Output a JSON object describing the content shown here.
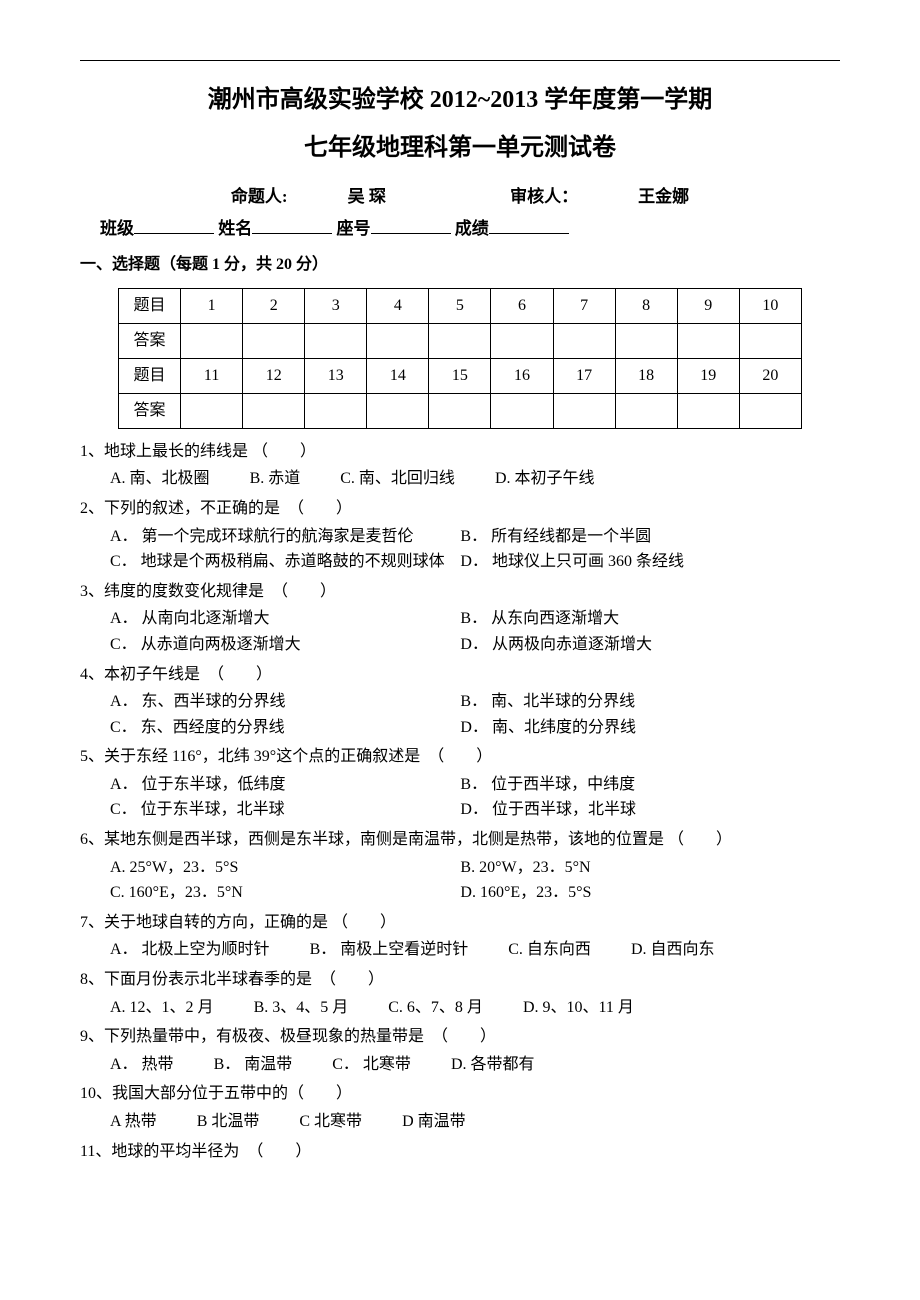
{
  "header": {
    "title_main": "潮州市高级实验学校 2012~2013 学年度第一学期",
    "title_sub": "七年级地理科第一单元测试卷",
    "author_prefix": "命题人:",
    "author_name": "吴 琛",
    "reviewer_prefix": "审核人：",
    "reviewer_name": "王金娜",
    "class_label": "班级",
    "name_label": "姓名",
    "seat_label": "座号",
    "score_label": "成绩"
  },
  "section1": {
    "title": "一、选择题（每题 1 分，共 20 分）",
    "grid": {
      "row_label_q": "题目",
      "row_label_a": "答案",
      "numbers_1": [
        "1",
        "2",
        "3",
        "4",
        "5",
        "6",
        "7",
        "8",
        "9",
        "10"
      ],
      "numbers_2": [
        "11",
        "12",
        "13",
        "14",
        "15",
        "16",
        "17",
        "18",
        "19",
        "20"
      ]
    }
  },
  "questions": [
    {
      "num": "1、",
      "text": "地球上最长的纬线是 （　　）",
      "opts": [
        {
          "label": "A.",
          "text": "南、北极圈"
        },
        {
          "label": "B.",
          "text": "赤道"
        },
        {
          "label": "C.",
          "text": "南、北回归线"
        },
        {
          "label": "D.",
          "text": "本初子午线"
        }
      ],
      "layout": "inline"
    },
    {
      "num": "2、",
      "text": "下列的叙述，不正确的是　（　　）",
      "opts": [
        {
          "label": "A．",
          "text": "第一个完成环球航行的航海家是麦哲伦"
        },
        {
          "label": "B．",
          "text": "所有经线都是一个半圆"
        },
        {
          "label": "C．",
          "text": "地球是个两极稍扁、赤道略鼓的不规则球体"
        },
        {
          "label": "D．",
          "text": "地球仪上只可画 360 条经线"
        }
      ],
      "layout": "half"
    },
    {
      "num": "3、",
      "text": "纬度的度数变化规律是　（　　）",
      "opts": [
        {
          "label": "A．",
          "text": "从南向北逐渐增大"
        },
        {
          "label": "B．",
          "text": "从东向西逐渐增大"
        },
        {
          "label": "C．",
          "text": "从赤道向两极逐渐增大"
        },
        {
          "label": "D．",
          "text": "从两极向赤道逐渐增大"
        }
      ],
      "layout": "half"
    },
    {
      "num": "4、",
      "text": "本初子午线是　（　　）",
      "opts": [
        {
          "label": "A．",
          "text": "东、西半球的分界线"
        },
        {
          "label": "B．",
          "text": "南、北半球的分界线"
        },
        {
          "label": "C．",
          "text": "东、西经度的分界线"
        },
        {
          "label": "D．",
          "text": "南、北纬度的分界线"
        }
      ],
      "layout": "half"
    },
    {
      "num": "5、",
      "text": "关于东经 116°，北纬 39°这个点的正确叙述是　（　　）",
      "opts": [
        {
          "label": "A．",
          "text": "位于东半球，低纬度"
        },
        {
          "label": "B．",
          "text": "位于西半球，中纬度"
        },
        {
          "label": "C．",
          "text": "位于东半球，北半球"
        },
        {
          "label": "D．",
          "text": "位于西半球，北半球"
        }
      ],
      "layout": "half"
    },
    {
      "num": "6、",
      "text": "某地东侧是西半球，西侧是东半球，南侧是南温带，北侧是热带，该地的位置是 （　　）",
      "opts": [
        {
          "label": "A.",
          "text": "25°W，23．5°S"
        },
        {
          "label": "B.",
          "text": "20°W，23．5°N"
        },
        {
          "label": "C.",
          "text": "160°E，23．5°N"
        },
        {
          "label": "D.",
          "text": "160°E，23．5°S"
        }
      ],
      "layout": "half"
    },
    {
      "num": "7、",
      "text": "关于地球自转的方向，正确的是 （　　）",
      "opts": [
        {
          "label": "A．",
          "text": "北极上空为顺时针"
        },
        {
          "label": "B．",
          "text": "南极上空看逆时针"
        },
        {
          "label": "C.",
          "text": "自东向西"
        },
        {
          "label": "D.",
          "text": "自西向东"
        }
      ],
      "layout": "inline"
    },
    {
      "num": "8、",
      "text": "下面月份表示北半球春季的是　（　　）",
      "opts": [
        {
          "label": "A.",
          "text": "12、1、2 月"
        },
        {
          "label": "B.",
          "text": "3、4、5 月"
        },
        {
          "label": "C.",
          "text": "6、7、8 月"
        },
        {
          "label": "D.",
          "text": "9、10、11 月"
        }
      ],
      "layout": "inline"
    },
    {
      "num": "9、",
      "text": "下列热量带中，有极夜、极昼现象的热量带是　（　　）",
      "opts": [
        {
          "label": "A．",
          "text": "热带"
        },
        {
          "label": "B．",
          "text": "南温带"
        },
        {
          "label": "C．",
          "text": "北寒带"
        },
        {
          "label": "D.",
          "text": "各带都有"
        }
      ],
      "layout": "inline"
    },
    {
      "num": "10、",
      "text": "我国大部分位于五带中的（　　）",
      "opts": [
        {
          "label": "A",
          "text": "热带"
        },
        {
          "label": "B",
          "text": "北温带"
        },
        {
          "label": "C",
          "text": "北寒带"
        },
        {
          "label": "D",
          "text": "南温带"
        }
      ],
      "layout": "inline"
    },
    {
      "num": "11、",
      "text": "地球的平均半径为　（　　）",
      "opts": [],
      "layout": "inline"
    }
  ]
}
